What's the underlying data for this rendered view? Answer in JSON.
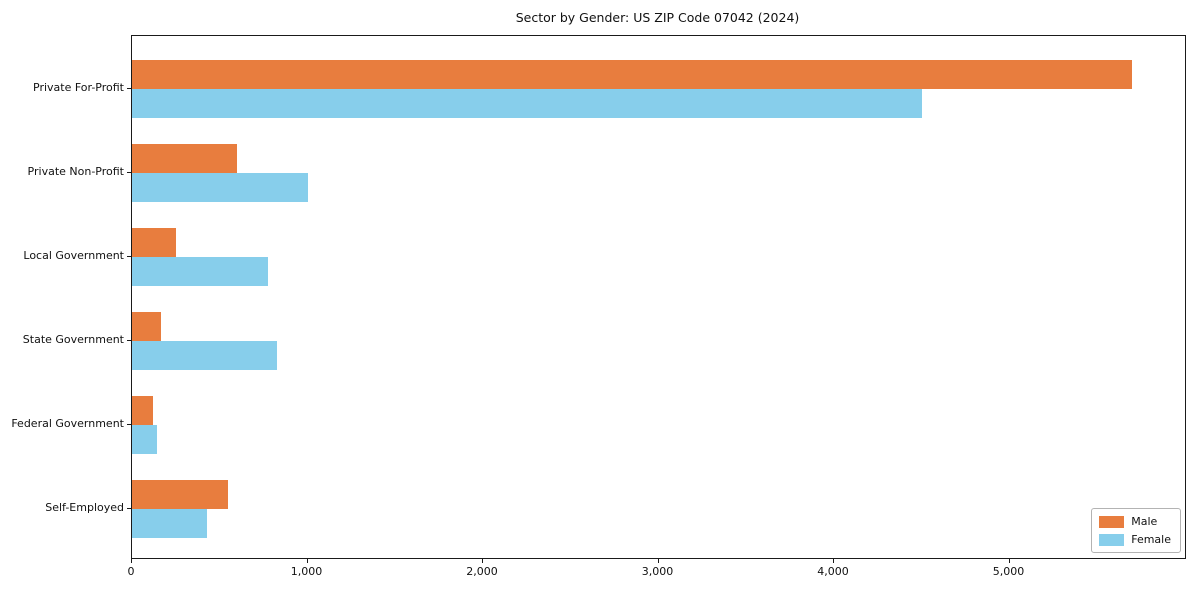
{
  "chart_data": {
    "type": "bar",
    "orientation": "horizontal",
    "title": "Sector by Gender: US ZIP Code 07042 (2024)",
    "categories": [
      "Private For-Profit",
      "Private Non-Profit",
      "Local Government",
      "State Government",
      "Federal Government",
      "Self-Employed"
    ],
    "series": [
      {
        "name": "Male",
        "color": "#E87D3E",
        "values": [
          5700,
          600,
          250,
          165,
          120,
          545
        ]
      },
      {
        "name": "Female",
        "color": "#87CEEB",
        "values": [
          4500,
          1000,
          775,
          825,
          145,
          430
        ]
      }
    ],
    "xlabel": "",
    "ylabel": "",
    "xlim": [
      0,
      6000
    ],
    "xticks": [
      0,
      1000,
      2000,
      3000,
      4000,
      5000
    ],
    "xtick_labels": [
      "0",
      "1,000",
      "2,000",
      "3,000",
      "4,000",
      "5,000"
    ],
    "grid": false,
    "legend_position": "lower right",
    "colors": {
      "axis": "#1a1a1a",
      "text": "#111111",
      "legend_border": "#b3b3b3"
    }
  }
}
